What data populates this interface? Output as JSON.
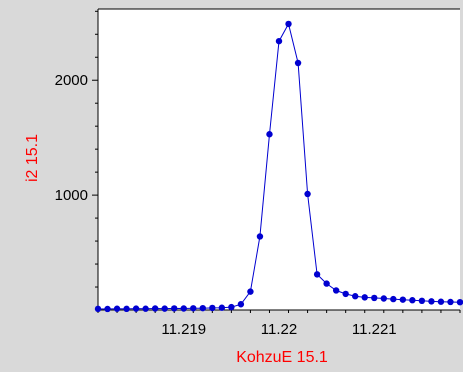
{
  "chart_data": {
    "type": "line",
    "xlabel": "KohzuE 15.1",
    "ylabel": "i2 15.1",
    "xlim": [
      11.2181,
      11.2219
    ],
    "ylim": [
      0,
      2620
    ],
    "x_ticks": [
      {
        "value": 11.219,
        "label": "11.219"
      },
      {
        "value": 11.22,
        "label": "11.22"
      },
      {
        "value": 11.221,
        "label": "11.221"
      }
    ],
    "y_ticks": [
      {
        "value": 1000,
        "label": "1000"
      },
      {
        "value": 2000,
        "label": "2000"
      }
    ],
    "grid": false,
    "colors": {
      "series": "#0000d0",
      "axis_title": "#ff0000",
      "plot_background": "#ffffff",
      "page_background": "#d9d9d9"
    },
    "series": [
      {
        "x": [
          11.2181,
          11.2182,
          11.2183,
          11.2184,
          11.2185,
          11.2186,
          11.2187,
          11.2188,
          11.2189,
          11.219,
          11.2191,
          11.2192,
          11.2193,
          11.2194,
          11.2195,
          11.2196,
          11.2197,
          11.2198,
          11.2199,
          11.22,
          11.2201,
          11.2202,
          11.2203,
          11.2204,
          11.2205,
          11.2206,
          11.2207,
          11.2208,
          11.2209,
          11.221,
          11.2211,
          11.2212,
          11.2213,
          11.2214,
          11.2215,
          11.2216,
          11.2217,
          11.2218,
          11.2219
        ],
        "values": [
          10,
          9,
          11,
          10,
          12,
          11,
          13,
          12,
          14,
          13,
          15,
          16,
          18,
          20,
          25,
          50,
          160,
          640,
          1530,
          2340,
          2490,
          2150,
          1010,
          310,
          230,
          170,
          140,
          120,
          110,
          105,
          100,
          95,
          90,
          85,
          80,
          75,
          72,
          70,
          68
        ]
      }
    ]
  }
}
